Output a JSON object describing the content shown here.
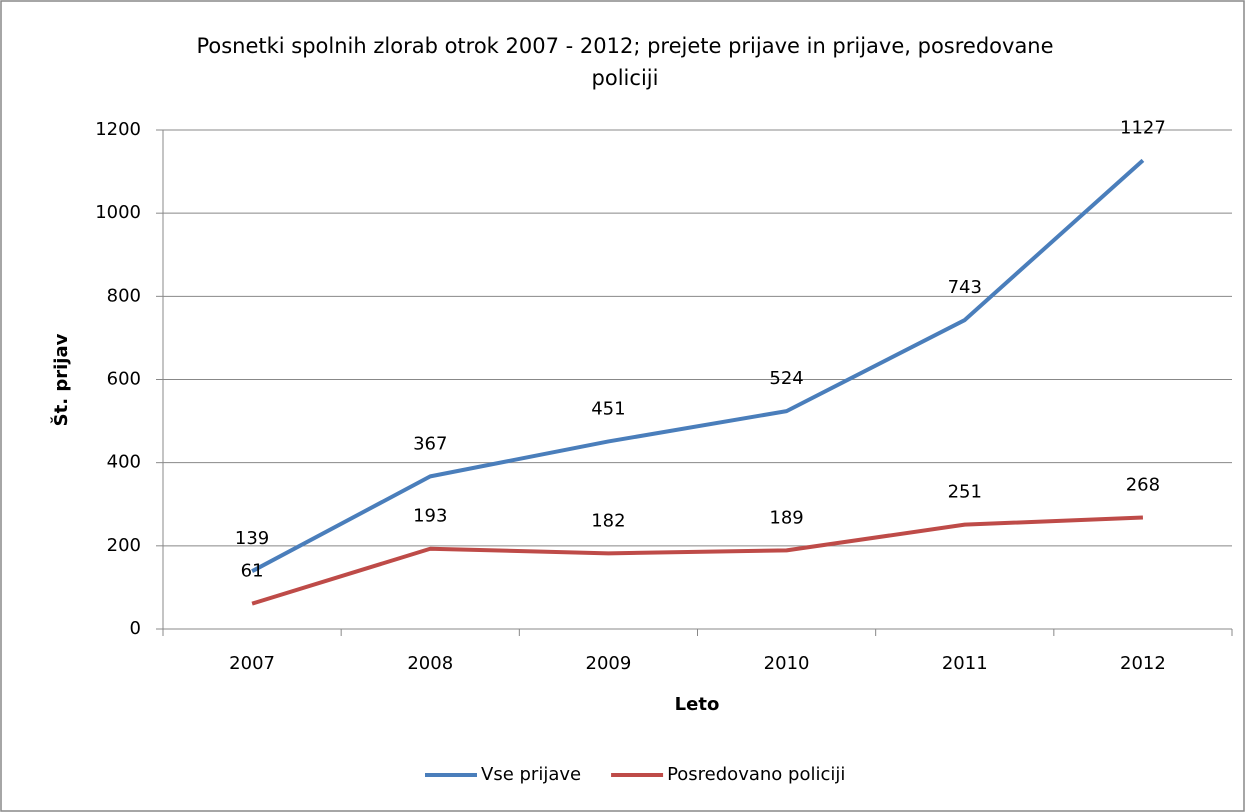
{
  "chart_data": {
    "type": "line",
    "title": "Posnetki spolnih zlorab otrok 2007 - 2012; prejete prijave in prijave, posredovane policiji",
    "x_label": "Leto",
    "y_label": "Št. prijav",
    "categories": [
      "2007",
      "2008",
      "2009",
      "2010",
      "2011",
      "2012"
    ],
    "series": [
      {
        "name": "Vse prijave",
        "color": "#4a7ebb",
        "values": [
          139,
          367,
          451,
          524,
          743,
          1127
        ]
      },
      {
        "name": "Posredovano policiji",
        "color": "#be4b48",
        "values": [
          61,
          193,
          182,
          189,
          251,
          268
        ]
      }
    ],
    "ylim": [
      0,
      1200
    ],
    "yticks": [
      0,
      200,
      400,
      600,
      800,
      1000,
      1200
    ],
    "grid": true,
    "legend": "bottom"
  }
}
